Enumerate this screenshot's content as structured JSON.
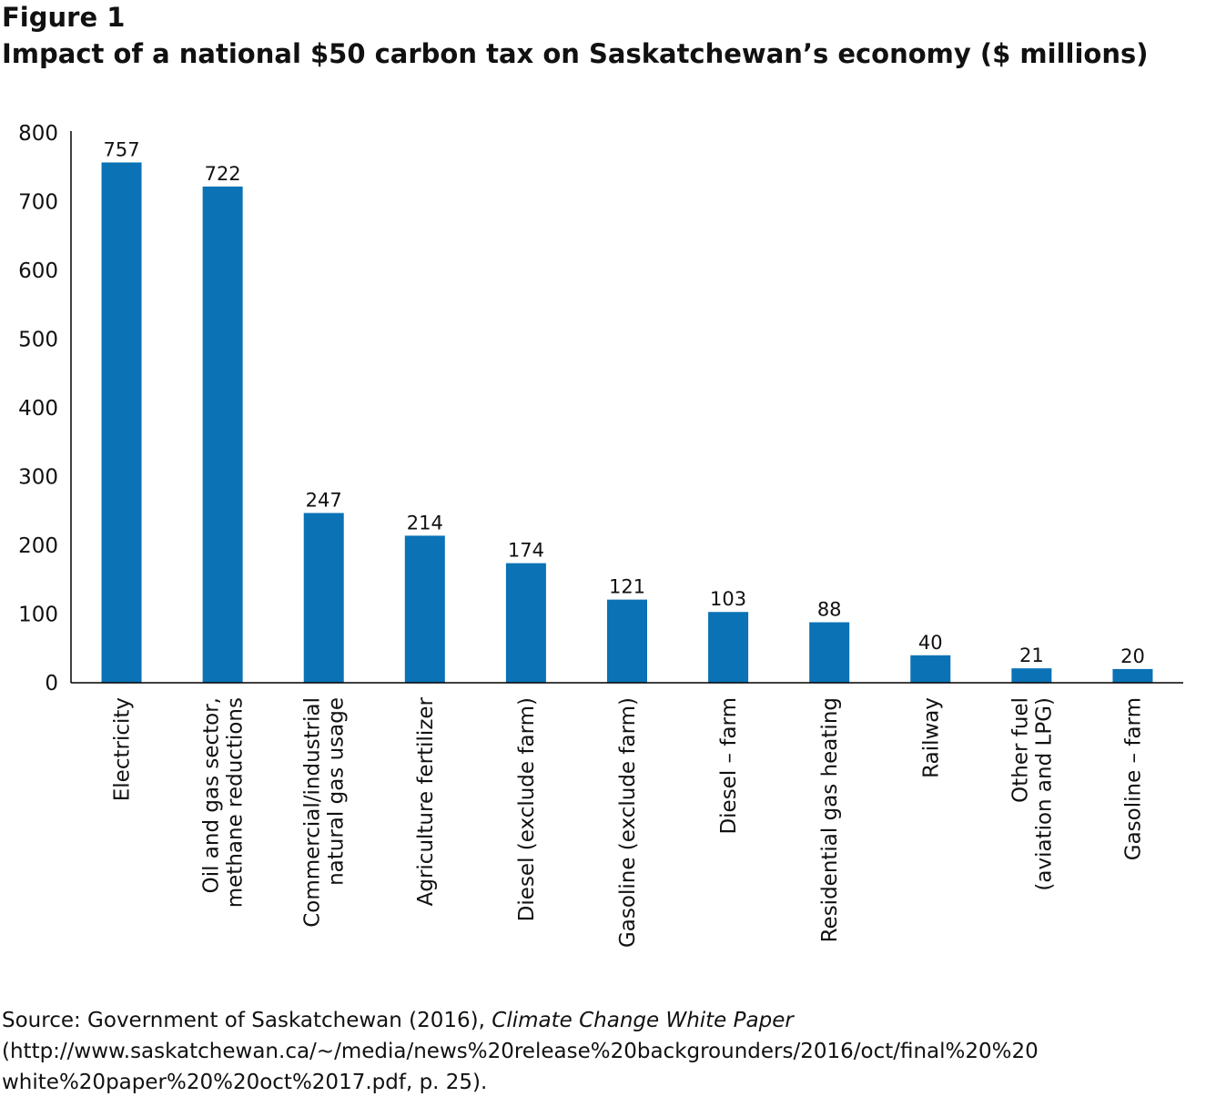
{
  "figure_label": "Figure 1",
  "title": "Impact of a national $50 carbon tax on Saskatchewan’s economy ($ millions)",
  "chart_data": {
    "type": "bar",
    "categories": [
      [
        "Electricity"
      ],
      [
        "Oil and gas sector,",
        "methane reductions"
      ],
      [
        "Commercial/industrial",
        "natural gas usage"
      ],
      [
        "Agriculture fertilizer"
      ],
      [
        "Diesel (exclude farm)"
      ],
      [
        "Gasoline (exclude farm)"
      ],
      [
        "Diesel – farm"
      ],
      [
        "Residential gas heating"
      ],
      [
        "Railway"
      ],
      [
        "Other fuel",
        "(aviation and LPG)"
      ],
      [
        "Gasoline – farm"
      ]
    ],
    "values": [
      757,
      722,
      247,
      214,
      174,
      121,
      103,
      88,
      40,
      21,
      20
    ],
    "ylim": [
      0,
      800
    ],
    "yticks": [
      0,
      100,
      200,
      300,
      400,
      500,
      600,
      700,
      800
    ],
    "bar_color": "#0a72b5",
    "data_labels": true,
    "grid": false
  },
  "source": {
    "prefix": "Source: Government of Saskatchewan (2016), ",
    "doc_title": "Climate Change White Paper",
    "line2": "(http://www.saskatchewan.ca/~/media/news%20release%20backgrounders/2016/oct/final%20%20",
    "line3": "white%20paper%20%20oct%2017.pdf, p. 25)."
  }
}
